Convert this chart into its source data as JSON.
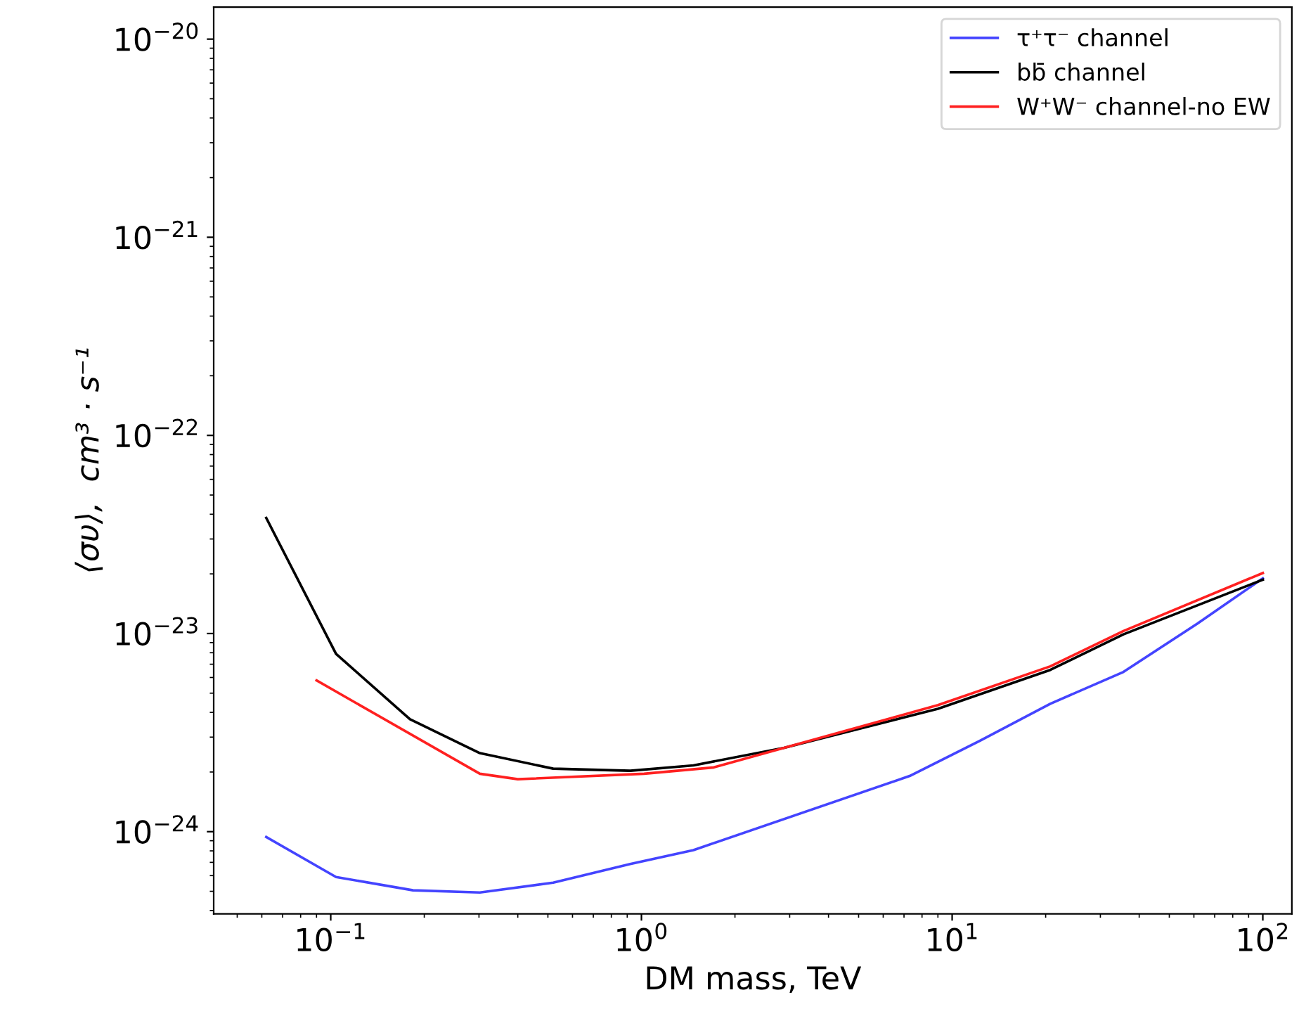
{
  "chart_data": {
    "type": "line",
    "xlabel": "DM mass, TeV",
    "ylabel": "⟨συ⟩,  cm³ · s⁻¹",
    "log": "xy",
    "grid": false,
    "legend": "top right",
    "line_style": "solid",
    "marker": "none",
    "xlim": [
      0.042,
      124
    ],
    "ylim": [
      3.85e-25,
      1.45e-20
    ],
    "xticks": [
      {
        "value": 0.1,
        "label": "10$^{−1}$"
      },
      {
        "value": 1,
        "label": "10$^{0}$"
      },
      {
        "value": 10,
        "label": "10$^{1}$"
      },
      {
        "value": 100,
        "label": "10$^{2}$"
      }
    ],
    "yticks": [
      {
        "value": 1e-24,
        "label": "10$^{−24}$"
      },
      {
        "value": 1e-23,
        "label": "10$^{−23}$"
      },
      {
        "value": 1e-22,
        "label": "10$^{−22}$"
      },
      {
        "value": 1e-21,
        "label": "10$^{−21}$"
      },
      {
        "value": 1e-20,
        "label": "10$^{−20}$"
      }
    ],
    "series": [
      {
        "name": "τ⁺τ⁻ channel",
        "color": "#4444ff",
        "x": [
          0.062,
          0.104,
          0.184,
          0.302,
          0.52,
          0.92,
          1.47,
          7.3,
          12.3,
          20.7,
          35.6,
          61.5,
          100
        ],
        "values": [
          9.4e-25,
          5.9e-25,
          5.06e-25,
          4.93e-25,
          5.53e-25,
          6.86e-25,
          8.07e-25,
          1.91e-24,
          2.88e-24,
          4.42e-24,
          6.4e-24,
          1.12e-23,
          1.9e-23
        ]
      },
      {
        "name": "bb̄ channel",
        "color": "#000000",
        "x": [
          0.062,
          0.104,
          0.18,
          0.302,
          0.52,
          0.92,
          1.47,
          2.88,
          9.0,
          20.7,
          35.6,
          100
        ],
        "values": [
          3.83e-23,
          7.9e-24,
          3.69e-24,
          2.49e-24,
          2.08e-24,
          2.03e-24,
          2.16e-24,
          2.65e-24,
          4.17e-24,
          6.55e-24,
          9.9e-24,
          1.87e-23
        ]
      },
      {
        "name": "W⁺W⁻ channel-no EW",
        "color": "#ff2020",
        "x": [
          0.09,
          0.302,
          0.4,
          1.02,
          1.71,
          9.0,
          20.7,
          35.6,
          100
        ],
        "values": [
          5.8e-24,
          1.96e-24,
          1.84e-24,
          1.96e-24,
          2.11e-24,
          4.35e-24,
          6.83e-24,
          1.03e-23,
          2.02e-23
        ]
      }
    ]
  }
}
